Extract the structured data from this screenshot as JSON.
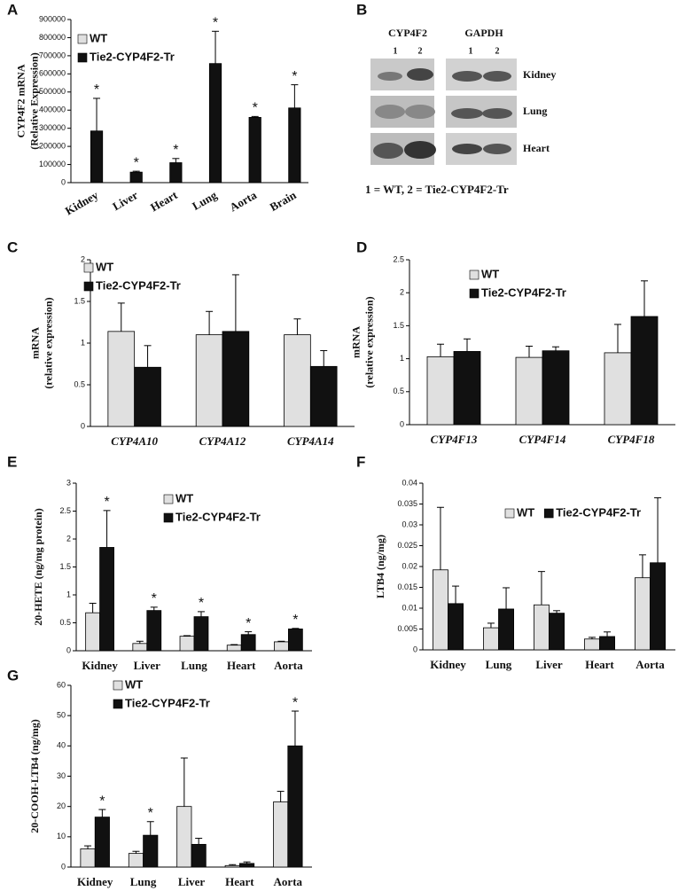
{
  "chart_data": [
    {
      "type": "bar",
      "panel": "A",
      "ylabel": [
        "CYP4F2 mRNA",
        "(Relative Expression)"
      ],
      "categories": [
        "Kidney",
        "Liver",
        "Heart",
        "Lung",
        "Aorta",
        "Brain"
      ],
      "series": [
        {
          "name": "WT",
          "color": "#e0e0e0",
          "values": [
            0,
            0,
            0,
            0,
            0,
            0
          ],
          "errors": [
            0,
            0,
            0,
            0,
            0,
            0
          ]
        },
        {
          "name": "Tie2-CYP4F2-Tr",
          "color": "#111111",
          "values": [
            285000,
            58000,
            110000,
            657000,
            360000,
            412000
          ],
          "errors": [
            180000,
            5000,
            23000,
            178000,
            5000,
            128000
          ]
        }
      ],
      "significance": [
        "*",
        "*",
        "*",
        "*",
        "*",
        "*"
      ],
      "ylim": [
        0,
        900000
      ],
      "yticks": [
        0,
        100000,
        200000,
        300000,
        400000,
        500000,
        600000,
        700000,
        800000,
        900000
      ],
      "legend": "top-left"
    },
    {
      "type": "bar",
      "panel": "C",
      "ylabel": [
        "mRNA",
        "(relative expression)"
      ],
      "italic_categories": true,
      "categories": [
        "CYP4A10",
        "CYP4A12",
        "CYP4A14"
      ],
      "series": [
        {
          "name": "WT",
          "color": "#e0e0e0",
          "values": [
            1.14,
            1.1,
            1.1
          ],
          "errors": [
            0.34,
            0.28,
            0.19
          ]
        },
        {
          "name": "Tie2-CYP4F2-Tr",
          "color": "#111111",
          "values": [
            0.71,
            1.14,
            0.72
          ],
          "errors": [
            0.26,
            0.68,
            0.19
          ]
        }
      ],
      "ylim": [
        0,
        2
      ],
      "yticks": [
        0,
        0.5,
        1,
        1.5,
        2
      ],
      "legend": "top-left"
    },
    {
      "type": "bar",
      "panel": "D",
      "ylabel": [
        "mRNA",
        "(relative expression)"
      ],
      "italic_categories": true,
      "categories": [
        "CYP4F13",
        "CYP4F14",
        "CYP4F18"
      ],
      "series": [
        {
          "name": "WT",
          "color": "#e0e0e0",
          "values": [
            1.03,
            1.02,
            1.09
          ],
          "errors": [
            0.19,
            0.17,
            0.43
          ]
        },
        {
          "name": "Tie2-CYP4F2-Tr",
          "color": "#111111",
          "values": [
            1.11,
            1.12,
            1.64
          ],
          "errors": [
            0.19,
            0.06,
            0.54
          ]
        }
      ],
      "ylim": [
        0,
        2.5
      ],
      "yticks": [
        0,
        0.5,
        1,
        1.5,
        2,
        2.5
      ],
      "legend": "top-left"
    },
    {
      "type": "bar",
      "panel": "E",
      "ylabel": [
        "20-HETE (ng/mg protein)"
      ],
      "categories": [
        "Kidney",
        "Liver",
        "Lung",
        "Heart",
        "Aorta"
      ],
      "series": [
        {
          "name": "WT",
          "color": "#e0e0e0",
          "values": [
            0.68,
            0.13,
            0.26,
            0.1,
            0.16
          ],
          "errors": [
            0.17,
            0.04,
            0.01,
            0.01,
            0.01
          ]
        },
        {
          "name": "Tie2-CYP4F2-Tr",
          "color": "#111111",
          "values": [
            1.85,
            0.72,
            0.61,
            0.29,
            0.39
          ],
          "errors": [
            0.66,
            0.06,
            0.09,
            0.05,
            0.01
          ]
        }
      ],
      "significance": [
        "*",
        "*",
        "*",
        "*",
        "*"
      ],
      "ylim": [
        0,
        3
      ],
      "yticks": [
        0,
        0.5,
        1,
        1.5,
        2,
        2.5,
        3
      ],
      "legend": "top-right"
    },
    {
      "type": "bar",
      "panel": "F",
      "ylabel": [
        "LTB4 (ng/mg)"
      ],
      "categories": [
        "Kidney",
        "Lung",
        "Liver",
        "Heart",
        "Aorta"
      ],
      "series": [
        {
          "name": "WT",
          "color": "#e0e0e0",
          "values": [
            0.0192,
            0.0053,
            0.0108,
            0.0026,
            0.0173
          ],
          "errors": [
            0.015,
            0.0011,
            0.008,
            0.0004,
            0.0055
          ]
        },
        {
          "name": "Tie2-CYP4F2-Tr",
          "color": "#111111",
          "values": [
            0.0111,
            0.0098,
            0.0088,
            0.0032,
            0.0209
          ],
          "errors": [
            0.0042,
            0.0051,
            0.0006,
            0.0011,
            0.0156
          ]
        }
      ],
      "ylim": [
        0,
        0.04
      ],
      "yticks": [
        0,
        0.005,
        0.01,
        0.015,
        0.02,
        0.025,
        0.03,
        0.035,
        0.04
      ],
      "legend": "top-right"
    },
    {
      "type": "bar",
      "panel": "G",
      "ylabel": [
        "20-COOH-LTB4 (ng/mg)"
      ],
      "categories": [
        "Kidney",
        "Lung",
        "Liver",
        "Heart",
        "Aorta"
      ],
      "series": [
        {
          "name": "WT",
          "color": "#e0e0e0",
          "values": [
            6,
            4.5,
            20,
            0.5,
            21.5
          ],
          "errors": [
            1,
            0.7,
            16,
            0.3,
            3.5
          ]
        },
        {
          "name": "Tie2-CYP4F2-Tr",
          "color": "#111111",
          "values": [
            16.5,
            10.5,
            7.5,
            1.2,
            40
          ],
          "errors": [
            2.5,
            4.5,
            2,
            0.5,
            11.5
          ]
        }
      ],
      "significance": [
        "*",
        "*",
        null,
        null,
        "*"
      ],
      "ylim": [
        0,
        60
      ],
      "yticks": [
        0,
        10,
        20,
        30,
        40,
        50,
        60
      ],
      "legend": "top-left"
    }
  ],
  "blot": {
    "panel": "B",
    "columns": [
      "CYP4F2",
      "GAPDH"
    ],
    "lanes": [
      "1",
      "2",
      "1",
      "2"
    ],
    "rows": [
      "Kidney",
      "Lung",
      "Heart"
    ],
    "caption": "1 = WT, 2 = Tie2-CYP4F2-Tr"
  }
}
